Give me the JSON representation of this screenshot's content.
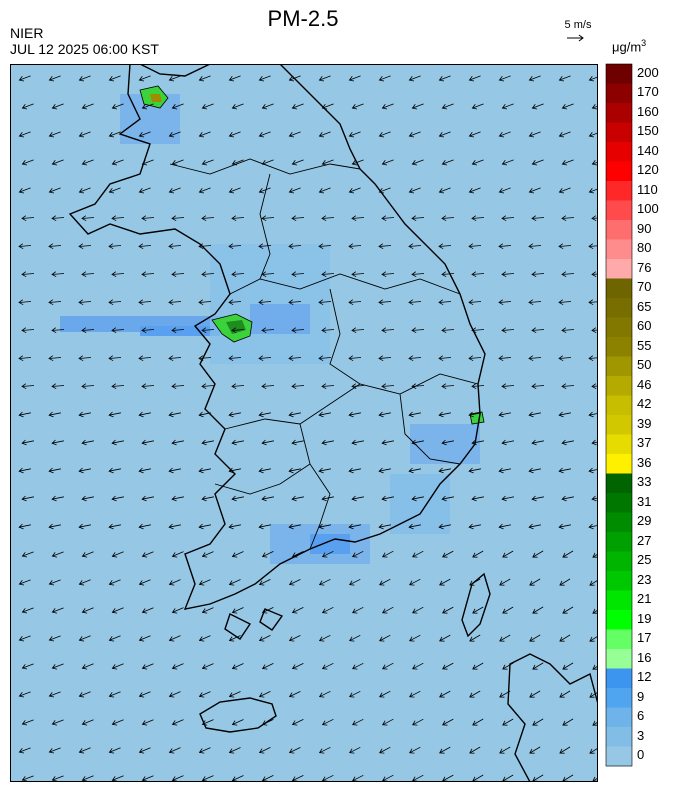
{
  "header": {
    "title": "PM-2.5",
    "agency": "NIER",
    "datetime": "JUL 12 2025 06:00 KST",
    "wind_reference": "5 m/s",
    "unit": "μg/m",
    "unit_exponent": "3"
  },
  "colors": {
    "base_field": "#96c8e6",
    "low_field": "#7db8ec",
    "mid_field": "#5aa0f0",
    "hotspot_green": "#3cd23c",
    "hotspot_dark": "#1e8c1e",
    "coastline": "#000000",
    "wind_arrow": "#000000"
  },
  "legend": [
    {
      "label": "200",
      "color": "#6e0000"
    },
    {
      "label": "170",
      "color": "#8c0000"
    },
    {
      "label": "160",
      "color": "#aa0000"
    },
    {
      "label": "150",
      "color": "#c80000"
    },
    {
      "label": "140",
      "color": "#e60000"
    },
    {
      "label": "120",
      "color": "#ff0000"
    },
    {
      "label": "110",
      "color": "#ff2828"
    },
    {
      "label": "100",
      "color": "#ff4b4b"
    },
    {
      "label": "90",
      "color": "#ff6e6e"
    },
    {
      "label": "80",
      "color": "#ff8c8c"
    },
    {
      "label": "76",
      "color": "#ffaaaa"
    },
    {
      "label": "70",
      "color": "#6e6400"
    },
    {
      "label": "65",
      "color": "#786e00"
    },
    {
      "label": "60",
      "color": "#827800"
    },
    {
      "label": "55",
      "color": "#8c8200"
    },
    {
      "label": "50",
      "color": "#a09600"
    },
    {
      "label": "46",
      "color": "#b4aa00"
    },
    {
      "label": "42",
      "color": "#c8be00"
    },
    {
      "label": "39",
      "color": "#d2c800"
    },
    {
      "label": "37",
      "color": "#e6dc00"
    },
    {
      "label": "36",
      "color": "#fff000"
    },
    {
      "label": "33",
      "color": "#006400"
    },
    {
      "label": "31",
      "color": "#007800"
    },
    {
      "label": "29",
      "color": "#008c00"
    },
    {
      "label": "27",
      "color": "#00a000"
    },
    {
      "label": "25",
      "color": "#00b400"
    },
    {
      "label": "23",
      "color": "#00c800"
    },
    {
      "label": "21",
      "color": "#00e600"
    },
    {
      "label": "19",
      "color": "#00ff00"
    },
    {
      "label": "17",
      "color": "#64ff64"
    },
    {
      "label": "16",
      "color": "#96ff96"
    },
    {
      "label": "12",
      "color": "#3c96f0"
    },
    {
      "label": "9",
      "color": "#50a5f0"
    },
    {
      "label": "6",
      "color": "#6eb4ea"
    },
    {
      "label": "3",
      "color": "#82bde6"
    },
    {
      "label": "0",
      "color": "#96c8e6"
    }
  ]
}
